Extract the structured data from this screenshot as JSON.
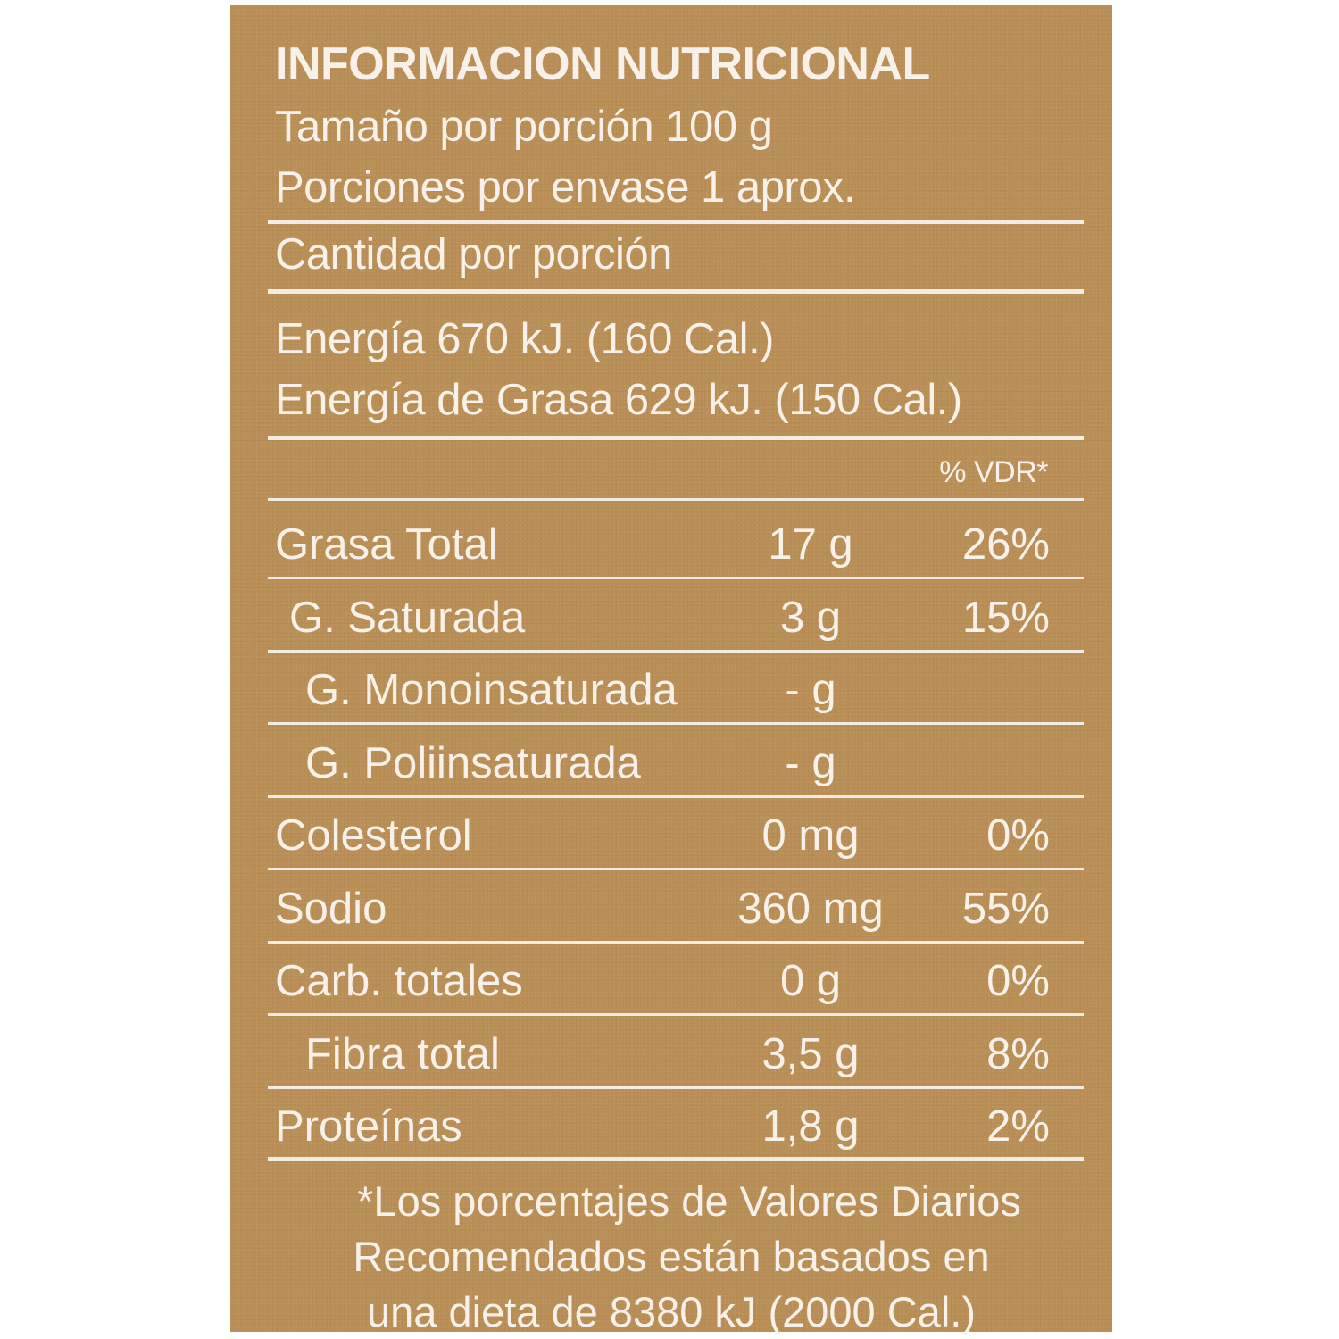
{
  "label": {
    "title": "INFORMACION NUTRICIONAL",
    "serving_size": "Tamaño por porción  100 g",
    "servings_per_container": "Porciones por envase 1 aprox.",
    "amount_per_serving": "Cantidad por porción",
    "energy": "Energía 670 kJ.  (160 Cal.)",
    "energy_from_fat": "Energía de Grasa 629 kJ. (150 Cal.)",
    "dv_header": "% VDR*",
    "nutrients": [
      {
        "name": "Grasa Total",
        "amount": "17 g",
        "dv": "26%"
      },
      {
        "name": "G. Saturada",
        "amount": "3 g",
        "dv": "15%"
      },
      {
        "name": "G. Monoinsaturada",
        "amount": "- g",
        "dv": ""
      },
      {
        "name": "G. Poliinsaturada",
        "amount": "- g",
        "dv": ""
      },
      {
        "name": "Colesterol",
        "amount": "0 mg",
        "dv": "0%"
      },
      {
        "name": "Sodio",
        "amount": "360 mg",
        "dv": "55%"
      },
      {
        "name": "Carb. totales",
        "amount": "0 g",
        "dv": "0%"
      },
      {
        "name": "Fibra total",
        "amount": "3,5 g",
        "dv": "8%"
      },
      {
        "name": "Proteínas",
        "amount": "1,8 g",
        "dv": "2%"
      }
    ],
    "footnote": [
      "*Los porcentajes de Valores Diarios",
      "Recomendados están basados en",
      "una dieta de 8380 kJ (2000 Cal.)"
    ],
    "colors": {
      "background": "#b98f57",
      "text": "#f7f1ea"
    }
  }
}
